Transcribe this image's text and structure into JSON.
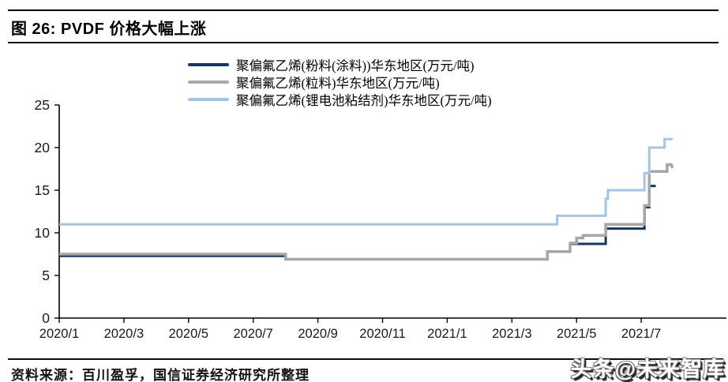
{
  "header": {
    "title": "图 26: PVDF 价格大幅上涨"
  },
  "footer": {
    "source": "资料来源：百川盈孚，国信证券经济研究所整理"
  },
  "watermark": {
    "text": "头条@未来智库"
  },
  "chart_data": {
    "type": "line",
    "title": "PVDF 价格大幅上涨",
    "xlabel": "",
    "ylabel": "万元/吨",
    "x_unit": "months since 2020/1 (0 = 2020/1)",
    "xlim": [
      0,
      20.6
    ],
    "ylim": [
      0,
      25
    ],
    "grid": false,
    "legend_position": "top-center",
    "x_tick_months": [
      0,
      2,
      4,
      6,
      8,
      10,
      12,
      14,
      16,
      18
    ],
    "x_tick_labels": [
      "2020/1",
      "2020/3",
      "2020/5",
      "2020/7",
      "2020/9",
      "2020/11",
      "2021/1",
      "2021/3",
      "2021/5",
      "2021/7"
    ],
    "y_ticks": [
      0,
      5,
      10,
      15,
      20,
      25
    ],
    "axis_color": "#000000",
    "tick_label_color": "#1a1a1a",
    "series": [
      {
        "name": "聚偏氟乙烯(粉料(涂料))华东地区(万元/吨)",
        "color": "#17375E",
        "width": 3,
        "points": [
          [
            0,
            7.3
          ],
          [
            7.0,
            7.3
          ],
          [
            7.0,
            6.9
          ],
          [
            15.1,
            6.9
          ],
          [
            15.1,
            7.8
          ],
          [
            15.8,
            7.8
          ],
          [
            15.8,
            8.7
          ],
          [
            16.9,
            8.7
          ],
          [
            16.9,
            10.5
          ],
          [
            18.1,
            10.5
          ],
          [
            18.1,
            13.0
          ],
          [
            18.25,
            13.0
          ],
          [
            18.25,
            15.5
          ],
          [
            18.45,
            15.5
          ]
        ]
      },
      {
        "name": "聚偏氟乙烯(粒料)华东地区(万元/吨)",
        "color": "#A6A6A6",
        "width": 3.5,
        "points": [
          [
            0,
            7.5
          ],
          [
            7.0,
            7.5
          ],
          [
            7.0,
            6.9
          ],
          [
            15.1,
            6.9
          ],
          [
            15.1,
            7.8
          ],
          [
            15.8,
            7.8
          ],
          [
            15.8,
            8.8
          ],
          [
            16.0,
            8.8
          ],
          [
            16.0,
            9.4
          ],
          [
            16.2,
            9.4
          ],
          [
            16.2,
            9.7
          ],
          [
            16.9,
            9.7
          ],
          [
            16.9,
            11.0
          ],
          [
            18.1,
            11.0
          ],
          [
            18.1,
            13.2
          ],
          [
            18.25,
            13.2
          ],
          [
            18.25,
            17.2
          ],
          [
            18.8,
            17.2
          ],
          [
            18.8,
            18.0
          ],
          [
            18.93,
            18.0
          ],
          [
            18.97,
            17.6
          ]
        ]
      },
      {
        "name": "聚偏氟乙烯(锂电池粘结剂)华东地区(万元/吨)",
        "color": "#A5C4E4",
        "width": 3,
        "points": [
          [
            0,
            11.0
          ],
          [
            15.4,
            11.0
          ],
          [
            15.4,
            12.0
          ],
          [
            16.9,
            12.0
          ],
          [
            16.9,
            14.0
          ],
          [
            16.97,
            14.0
          ],
          [
            16.97,
            15.0
          ],
          [
            18.1,
            15.0
          ],
          [
            18.1,
            17.0
          ],
          [
            18.25,
            17.0
          ],
          [
            18.25,
            20.0
          ],
          [
            18.72,
            20.0
          ],
          [
            18.72,
            21.0
          ],
          [
            18.97,
            21.0
          ]
        ]
      }
    ]
  }
}
